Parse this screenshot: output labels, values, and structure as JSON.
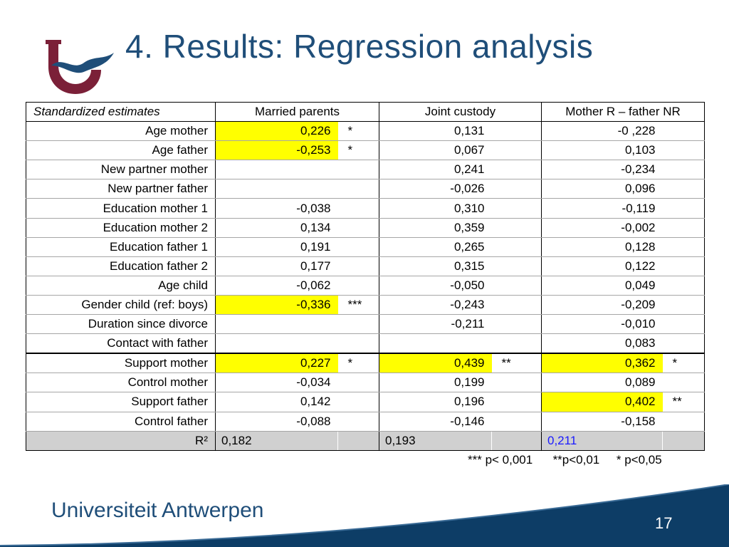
{
  "slide": {
    "title": "4. Results: Regression analysis",
    "page_number": "17"
  },
  "footer": {
    "university": "Universiteit Antwerpen"
  },
  "table": {
    "header": {
      "label": "Standardized estimates",
      "col1": "Married parents",
      "col2": "Joint custody",
      "col3": "Mother R – father NR"
    },
    "rows": [
      {
        "label": "Age mother",
        "v1": "0,226",
        "s1": "*",
        "v2": "0,131",
        "s2": "",
        "v3": "-0 ,228",
        "s3": ""
      },
      {
        "label": "Age father",
        "v1": "-0,253",
        "s1": "*",
        "v2": "0,067",
        "s2": "",
        "v3": "0,103",
        "s3": ""
      },
      {
        "label": "New partner mother",
        "v1": "",
        "s1": "",
        "v2": "0,241",
        "s2": "",
        "v3": "-0,234",
        "s3": ""
      },
      {
        "label": "New partner father",
        "v1": "",
        "s1": "",
        "v2": "-0,026",
        "s2": "",
        "v3": "0,096",
        "s3": ""
      },
      {
        "label": "Education mother 1",
        "v1": "-0,038",
        "s1": "",
        "v2": "0,310",
        "s2": "",
        "v3": "-0,119",
        "s3": ""
      },
      {
        "label": "Education mother 2",
        "v1": "0,134",
        "s1": "",
        "v2": "0,359",
        "s2": "",
        "v3": "-0,002",
        "s3": ""
      },
      {
        "label": "Education father 1",
        "v1": "0,191",
        "s1": "",
        "v2": "0,265",
        "s2": "",
        "v3": "0,128",
        "s3": ""
      },
      {
        "label": "Education father 2",
        "v1": "0,177",
        "s1": "",
        "v2": "0,315",
        "s2": "",
        "v3": "0,122",
        "s3": ""
      },
      {
        "label": "Age child",
        "v1": "-0,062",
        "s1": "",
        "v2": "-0,050",
        "s2": "",
        "v3": "0,049",
        "s3": ""
      },
      {
        "label": "Gender child (ref: boys)",
        "v1": "-0,336",
        "s1": "***",
        "v2": "-0,243",
        "s2": "",
        "v3": "-0,209",
        "s3": ""
      },
      {
        "label": "Duration since divorce",
        "v1": "",
        "s1": "",
        "v2": "-0,211",
        "s2": "",
        "v3": "-0,010",
        "s3": ""
      },
      {
        "label": "Contact with father",
        "v1": "",
        "s1": "",
        "v2": "",
        "s2": "",
        "v3": "0,083",
        "s3": ""
      },
      {
        "label": "Support mother",
        "v1": "0,227",
        "s1": "*",
        "v2": "0,439",
        "s2": "**",
        "v3": "0,362",
        "s3": "*"
      },
      {
        "label": "Control mother",
        "v1": "-0,034",
        "s1": "",
        "v2": "0,199",
        "s2": "",
        "v3": "0,089",
        "s3": ""
      },
      {
        "label": "Support father",
        "v1": "0,142",
        "s1": "",
        "v2": "0,196",
        "s2": "",
        "v3": "0,402",
        "s3": "**"
      },
      {
        "label": "Control father",
        "v1": "-0,088",
        "s1": "",
        "v2": "-0,146",
        "s2": "",
        "v3": "-0,158",
        "s3": ""
      }
    ],
    "r2": {
      "label": "R²",
      "v1": "0,182",
      "v2": "0,193",
      "v3": "0,211"
    },
    "highlight_color": "#ffff00",
    "r2_v3_color": "#1a1aff"
  },
  "footnote": {
    "p001": "*** p< 0,001",
    "p01": "**p<0,01",
    "p05": "* p<0,05"
  },
  "colors": {
    "title": "#1f4e79",
    "logo": "#7b2038",
    "footer_band": "#0d3d66"
  }
}
